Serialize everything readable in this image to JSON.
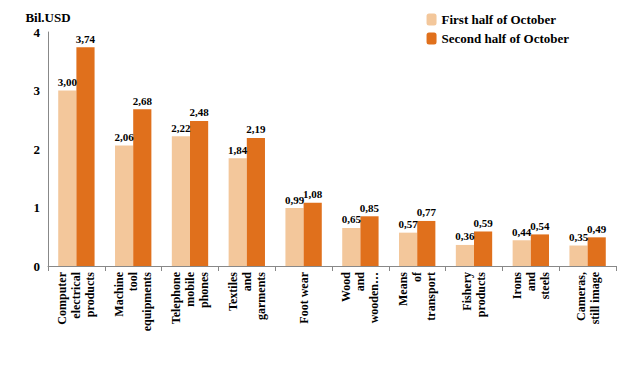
{
  "chart_data": {
    "type": "bar",
    "y_label": "Bil.USD",
    "categories": [
      "Computer\nelectrical\nproducts",
      "Machine\ntool\nequipments",
      "Telephone\nmobile\nphones",
      "Textiles\nand\ngarments",
      "Foot wear",
      "Wood\nand\nwooden…",
      "Means\nof\ntransport",
      "Fishery\nproducts",
      "Irons\nand\nsteels",
      "Cameras,\nstill image"
    ],
    "series": [
      {
        "name": "First half of October",
        "color": "#f3c79b",
        "values": [
          3.0,
          2.06,
          2.22,
          1.84,
          0.99,
          0.65,
          0.57,
          0.36,
          0.44,
          0.35
        ],
        "value_labels": [
          "3,00",
          "2,06",
          "2,22",
          "1,84",
          "0,99",
          "0,65",
          "0,57",
          "0,36",
          "0,44",
          "0,35"
        ]
      },
      {
        "name": "Second half of October",
        "color": "#e0701c",
        "values": [
          3.74,
          2.68,
          2.48,
          2.19,
          1.08,
          0.85,
          0.77,
          0.59,
          0.54,
          0.49
        ],
        "value_labels": [
          "3,74",
          "2,68",
          "2,48",
          "2,19",
          "1,08",
          "0,85",
          "0,77",
          "0,59",
          "0,54",
          "0,49"
        ]
      }
    ],
    "ylim": [
      0,
      4
    ],
    "yticks": [
      0,
      1,
      2,
      3,
      4
    ],
    "grid": false,
    "legend": "top-right",
    "data_labels": true
  }
}
